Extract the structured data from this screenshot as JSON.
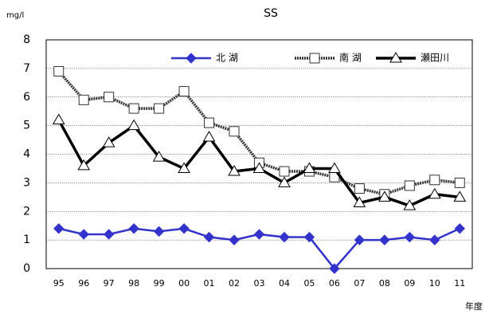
{
  "chart_data": {
    "type": "line",
    "title": "SS",
    "y_unit": "mg/l",
    "x_label": "年度",
    "categories": [
      "95",
      "96",
      "97",
      "98",
      "99",
      "00",
      "01",
      "02",
      "03",
      "04",
      "05",
      "06",
      "07",
      "08",
      "09",
      "10",
      "11"
    ],
    "series": [
      {
        "name": "北 湖",
        "color": "#3333cc",
        "marker": "diamond",
        "dashed": false,
        "values": [
          1.4,
          1.2,
          1.2,
          1.4,
          1.3,
          1.4,
          1.1,
          1.0,
          1.2,
          1.1,
          1.1,
          0.0,
          1.0,
          1.0,
          1.1,
          1.0,
          1.4
        ]
      },
      {
        "name": "南 湖",
        "color": "#333333",
        "marker": "square",
        "dashed": true,
        "values": [
          6.9,
          5.9,
          6.0,
          5.6,
          5.6,
          6.2,
          5.1,
          4.8,
          3.7,
          3.4,
          3.4,
          3.2,
          2.8,
          2.6,
          2.9,
          3.1,
          3.0
        ]
      },
      {
        "name": "瀬田川",
        "color": "#000000",
        "marker": "triangle",
        "dashed": false,
        "values": [
          5.2,
          3.6,
          4.4,
          5.0,
          3.9,
          3.5,
          4.6,
          3.4,
          3.5,
          3.0,
          3.5,
          3.5,
          2.3,
          2.5,
          2.2,
          2.6,
          2.5
        ]
      }
    ],
    "ylim": [
      0,
      8
    ],
    "yticks": [
      0,
      1,
      2,
      3,
      4,
      5,
      6,
      7,
      8
    ],
    "grid": true,
    "legend": "top"
  }
}
